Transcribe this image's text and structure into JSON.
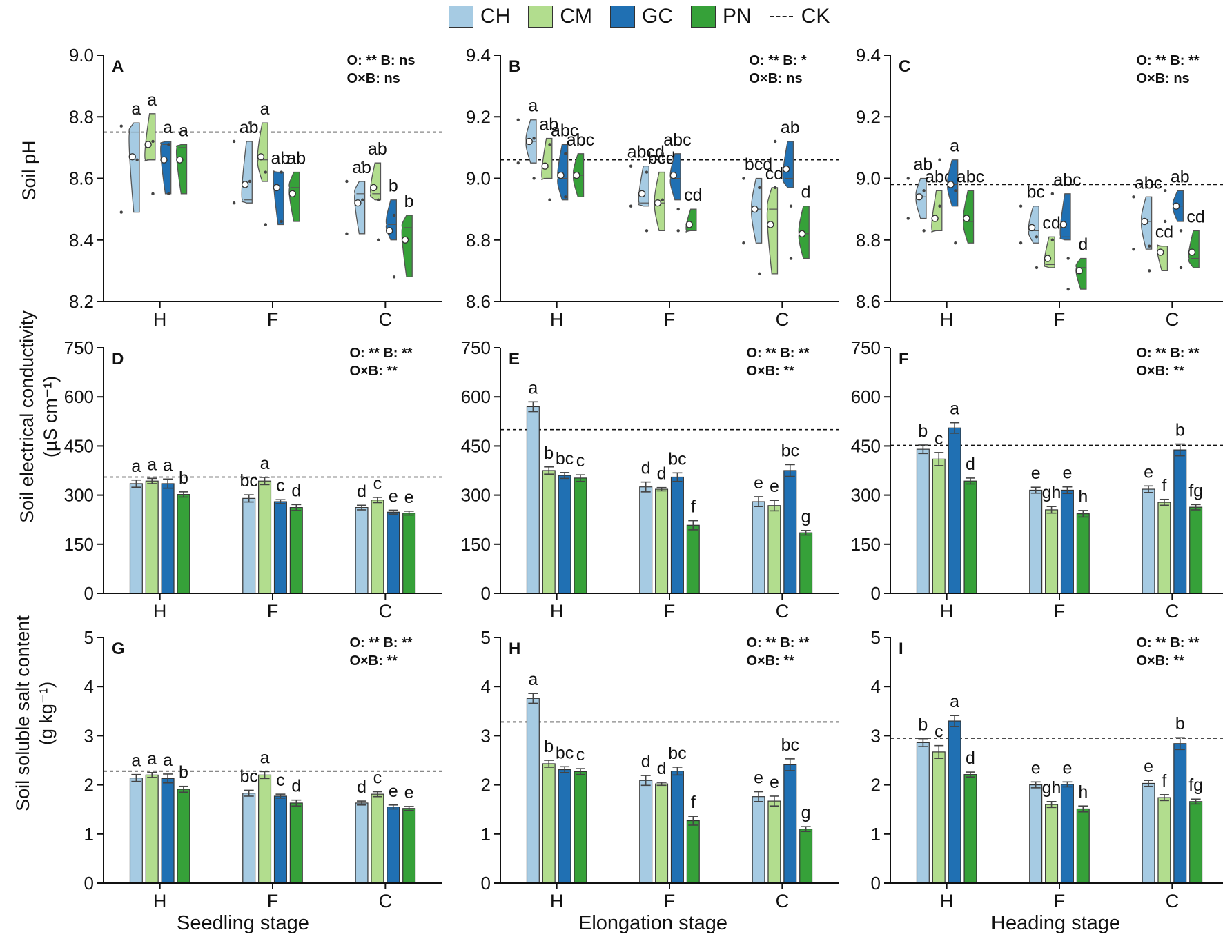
{
  "legend": {
    "items": [
      {
        "name": "CH",
        "color": "#a6cbe3"
      },
      {
        "name": "CM",
        "color": "#b2dd8e"
      },
      {
        "name": "GC",
        "color": "#2070b3"
      },
      {
        "name": "PN",
        "color": "#36a139"
      }
    ],
    "ck_label": "CK"
  },
  "ylabels": {
    "ph": "Soil pH",
    "ec_line1": "Soil electrical conductivity",
    "ec_line2": "(µS cm⁻¹)",
    "salt_line1": "Soil soluble salt content",
    "salt_line2": "(g kg⁻¹)"
  },
  "xlabels": {
    "seedling": "Seedling stage",
    "elongation": "Elongation stage",
    "heading": "Heading stage"
  },
  "chart_data": [
    {
      "id": "A",
      "type": "violin",
      "title": "A",
      "ylim": [
        8.2,
        9.0
      ],
      "yticks": [
        8.2,
        8.4,
        8.6,
        8.8,
        9.0
      ],
      "tick_format": 1,
      "categories": [
        "H",
        "F",
        "C"
      ],
      "ck": 8.75,
      "stats": [
        "O: **  B: ns",
        "O×B: ns"
      ],
      "series": [
        {
          "name": "CH",
          "mean": [
            8.67,
            8.58,
            8.52
          ],
          "q1": [
            8.49,
            8.52,
            8.42
          ],
          "median": [
            8.75,
            8.53,
            8.55
          ],
          "q3": [
            8.77,
            8.72,
            8.59
          ],
          "min": [
            8.49,
            8.52,
            8.42
          ],
          "max": [
            8.78,
            8.72,
            8.59
          ],
          "letters": [
            "a",
            "ab",
            "ab"
          ]
        },
        {
          "name": "CM",
          "mean": [
            8.71,
            8.67,
            8.57
          ],
          "q1": [
            8.66,
            8.59,
            8.53
          ],
          "median": [
            8.66,
            8.66,
            8.55
          ],
          "q3": [
            8.81,
            8.78,
            8.65
          ],
          "min": [
            8.66,
            8.59,
            8.53
          ],
          "max": [
            8.81,
            8.78,
            8.65
          ],
          "letters": [
            "a",
            "a",
            "ab"
          ]
        },
        {
          "name": "GC",
          "mean": [
            8.66,
            8.57,
            8.43
          ],
          "q1": [
            8.55,
            8.45,
            8.4
          ],
          "median": [
            8.71,
            8.62,
            8.45
          ],
          "q3": [
            8.72,
            8.62,
            8.53
          ],
          "min": [
            8.55,
            8.45,
            8.4
          ],
          "max": [
            8.72,
            8.62,
            8.53
          ],
          "letters": [
            "a",
            "ab",
            "b"
          ]
        },
        {
          "name": "PN",
          "mean": [
            8.66,
            8.55,
            8.4
          ],
          "q1": [
            8.55,
            8.46,
            8.28
          ],
          "median": [
            8.7,
            8.57,
            8.44
          ],
          "q3": [
            8.71,
            8.62,
            8.48
          ],
          "min": [
            8.55,
            8.46,
            8.28
          ],
          "max": [
            8.71,
            8.62,
            8.48
          ],
          "letters": [
            "a",
            "ab",
            "b"
          ]
        }
      ]
    },
    {
      "id": "B",
      "type": "violin",
      "title": "B",
      "ylim": [
        8.6,
        9.4
      ],
      "yticks": [
        8.6,
        8.8,
        9.0,
        9.2,
        9.4
      ],
      "tick_format": 1,
      "categories": [
        "H",
        "F",
        "C"
      ],
      "ck": 9.06,
      "stats": [
        "O: **  B: *",
        "O×B: ns"
      ],
      "series": [
        {
          "name": "CH",
          "mean": [
            9.12,
            8.95,
            8.9
          ],
          "q1": [
            9.05,
            8.91,
            8.79
          ],
          "median": [
            9.12,
            8.92,
            8.9
          ],
          "q3": [
            9.19,
            9.04,
            9.0
          ],
          "min": [
            9.05,
            8.91,
            8.79
          ],
          "max": [
            9.19,
            9.04,
            9.0
          ],
          "letters": [
            "a",
            "abcd",
            "bcd"
          ]
        },
        {
          "name": "CM",
          "mean": [
            9.04,
            8.92,
            8.85
          ],
          "q1": [
            9.0,
            8.83,
            8.69
          ],
          "median": [
            9.0,
            8.92,
            8.9
          ],
          "q3": [
            9.13,
            9.02,
            8.97
          ],
          "min": [
            9.0,
            8.83,
            8.69
          ],
          "max": [
            9.13,
            9.02,
            8.97
          ],
          "letters": [
            "ab",
            "bcd",
            "cd"
          ]
        },
        {
          "name": "GC",
          "mean": [
            9.01,
            9.01,
            9.03
          ],
          "q1": [
            8.93,
            8.93,
            8.97
          ],
          "median": [
            9.0,
            9.0,
            9.0
          ],
          "q3": [
            9.11,
            9.08,
            9.12
          ],
          "min": [
            8.93,
            8.93,
            8.97
          ],
          "max": [
            9.11,
            9.08,
            9.12
          ],
          "letters": [
            "abc",
            "abc",
            "ab"
          ]
        },
        {
          "name": "PN",
          "mean": [
            9.01,
            8.85,
            8.82
          ],
          "q1": [
            8.94,
            8.83,
            8.74
          ],
          "median": [
            9.01,
            8.83,
            8.82
          ],
          "q3": [
            9.08,
            8.9,
            8.91
          ],
          "min": [
            8.94,
            8.83,
            8.74
          ],
          "max": [
            9.08,
            8.9,
            8.91
          ],
          "letters": [
            "abc",
            "cd",
            "d"
          ]
        }
      ]
    },
    {
      "id": "C",
      "type": "violin",
      "title": "C",
      "ylim": [
        8.6,
        9.4
      ],
      "yticks": [
        8.6,
        8.8,
        9.0,
        9.2,
        9.4
      ],
      "tick_format": 1,
      "categories": [
        "H",
        "F",
        "C"
      ],
      "ck": 8.98,
      "stats": [
        "O: **  B: **",
        "O×B: ns"
      ],
      "series": [
        {
          "name": "CH",
          "mean": [
            8.94,
            8.84,
            8.86
          ],
          "q1": [
            8.87,
            8.79,
            8.77
          ],
          "median": [
            8.94,
            8.83,
            8.86
          ],
          "q3": [
            9.0,
            8.91,
            8.94
          ],
          "min": [
            8.87,
            8.79,
            8.77
          ],
          "max": [
            9.0,
            8.91,
            8.94
          ],
          "letters": [
            "ab",
            "bc",
            "abc"
          ]
        },
        {
          "name": "CM",
          "mean": [
            8.87,
            8.74,
            8.76
          ],
          "q1": [
            8.83,
            8.71,
            8.7
          ],
          "median": [
            8.83,
            8.72,
            8.78
          ],
          "q3": [
            8.96,
            8.81,
            8.78
          ],
          "min": [
            8.83,
            8.71,
            8.7
          ],
          "max": [
            8.96,
            8.81,
            8.78
          ],
          "letters": [
            "abc",
            "cd",
            "cd"
          ]
        },
        {
          "name": "GC",
          "mean": [
            8.98,
            8.85,
            8.91
          ],
          "q1": [
            8.91,
            8.8,
            8.86
          ],
          "median": [
            8.98,
            8.81,
            8.91
          ],
          "q3": [
            9.06,
            8.95,
            8.96
          ],
          "min": [
            8.91,
            8.8,
            8.86
          ],
          "max": [
            9.06,
            8.95,
            8.96
          ],
          "letters": [
            "a",
            "abc",
            "ab"
          ]
        },
        {
          "name": "PN",
          "mean": [
            8.87,
            8.7,
            8.76
          ],
          "q1": [
            8.79,
            8.64,
            8.71
          ],
          "median": [
            8.86,
            8.71,
            8.74
          ],
          "q3": [
            8.96,
            8.74,
            8.83
          ],
          "min": [
            8.79,
            8.64,
            8.71
          ],
          "max": [
            8.96,
            8.74,
            8.83
          ],
          "letters": [
            "abc",
            "d",
            "cd"
          ]
        }
      ]
    },
    {
      "id": "D",
      "type": "bar",
      "title": "D",
      "ylim": [
        0,
        750
      ],
      "yticks": [
        0,
        150,
        300,
        450,
        600,
        750
      ],
      "tick_format": 0,
      "categories": [
        "H",
        "F",
        "C"
      ],
      "ck": 355,
      "stats": [
        "O: **  B: **",
        "O×B: **"
      ],
      "series": [
        {
          "name": "CH",
          "values": [
            335,
            290,
            262
          ],
          "errors": [
            11,
            11,
            7
          ],
          "letters": [
            "a",
            "bc",
            "d"
          ]
        },
        {
          "name": "CM",
          "values": [
            343,
            343,
            285
          ],
          "errors": [
            8,
            11,
            8
          ],
          "letters": [
            "a",
            "a",
            "c"
          ]
        },
        {
          "name": "GC",
          "values": [
            335,
            280,
            248
          ],
          "errors": [
            14,
            6,
            6
          ],
          "letters": [
            "a",
            "c",
            "e"
          ]
        },
        {
          "name": "PN",
          "values": [
            302,
            262,
            245
          ],
          "errors": [
            8,
            9,
            6
          ],
          "letters": [
            "b",
            "d",
            "e"
          ]
        }
      ]
    },
    {
      "id": "E",
      "type": "bar",
      "title": "E",
      "ylim": [
        0,
        750
      ],
      "yticks": [
        0,
        150,
        300,
        450,
        600,
        750
      ],
      "tick_format": 0,
      "categories": [
        "H",
        "F",
        "C"
      ],
      "ck": 500,
      "stats": [
        "O: **  B: **",
        "O×B: **"
      ],
      "series": [
        {
          "name": "CH",
          "values": [
            570,
            325,
            280
          ],
          "errors": [
            15,
            15,
            15
          ],
          "letters": [
            "a",
            "d",
            "e"
          ]
        },
        {
          "name": "CM",
          "values": [
            375,
            318,
            268
          ],
          "errors": [
            11,
            5,
            16
          ],
          "letters": [
            "b",
            "d",
            "e"
          ]
        },
        {
          "name": "GC",
          "values": [
            360,
            355,
            375
          ],
          "errors": [
            9,
            13,
            18
          ],
          "letters": [
            "bc",
            "bc",
            "bc"
          ]
        },
        {
          "name": "PN",
          "values": [
            352,
            208,
            185
          ],
          "errors": [
            10,
            14,
            7
          ],
          "letters": [
            "c",
            "f",
            "g"
          ]
        }
      ]
    },
    {
      "id": "F",
      "type": "bar",
      "title": "F",
      "ylim": [
        0,
        750
      ],
      "yticks": [
        0,
        150,
        300,
        450,
        600,
        750
      ],
      "tick_format": 0,
      "categories": [
        "H",
        "F",
        "C"
      ],
      "ck": 452,
      "stats": [
        "O: **  B: **",
        "O×B: **"
      ],
      "series": [
        {
          "name": "CH",
          "values": [
            440,
            315,
            318
          ],
          "errors": [
            13,
            9,
            10
          ],
          "letters": [
            "b",
            "e",
            "e"
          ]
        },
        {
          "name": "CM",
          "values": [
            410,
            255,
            278
          ],
          "errors": [
            20,
            10,
            9
          ],
          "letters": [
            "c",
            "gh",
            "f"
          ]
        },
        {
          "name": "GC",
          "values": [
            505,
            315,
            438
          ],
          "errors": [
            16,
            10,
            18
          ],
          "letters": [
            "a",
            "e",
            "b"
          ]
        },
        {
          "name": "PN",
          "values": [
            343,
            243,
            263
          ],
          "errors": [
            9,
            10,
            8
          ],
          "letters": [
            "d",
            "h",
            "fg"
          ]
        }
      ]
    },
    {
      "id": "G",
      "type": "bar",
      "title": "G",
      "ylim": [
        0,
        5
      ],
      "yticks": [
        0,
        1,
        2,
        3,
        4,
        5
      ],
      "tick_format": 0,
      "categories": [
        "H",
        "F",
        "C"
      ],
      "ck": 2.28,
      "stats": [
        "O: **  B: **",
        "O×B: **"
      ],
      "series": [
        {
          "name": "CH",
          "values": [
            2.14,
            1.83,
            1.63
          ],
          "errors": [
            0.07,
            0.06,
            0.04
          ],
          "letters": [
            "a",
            "bc",
            "d"
          ]
        },
        {
          "name": "CM",
          "values": [
            2.2,
            2.2,
            1.81
          ],
          "errors": [
            0.05,
            0.07,
            0.05
          ],
          "letters": [
            "a",
            "a",
            "c"
          ]
        },
        {
          "name": "GC",
          "values": [
            2.13,
            1.77,
            1.55
          ],
          "errors": [
            0.09,
            0.04,
            0.04
          ],
          "letters": [
            "a",
            "c",
            "e"
          ]
        },
        {
          "name": "PN",
          "values": [
            1.91,
            1.63,
            1.52
          ],
          "errors": [
            0.06,
            0.06,
            0.04
          ],
          "letters": [
            "b",
            "d",
            "e"
          ]
        }
      ]
    },
    {
      "id": "H",
      "type": "bar",
      "title": "H",
      "ylim": [
        0,
        5
      ],
      "yticks": [
        0,
        1,
        2,
        3,
        4,
        5
      ],
      "tick_format": 0,
      "categories": [
        "H",
        "F",
        "C"
      ],
      "ck": 3.28,
      "stats": [
        "O: **  B: **",
        "O×B: **"
      ],
      "series": [
        {
          "name": "CH",
          "values": [
            3.76,
            2.09,
            1.76
          ],
          "errors": [
            0.1,
            0.1,
            0.1
          ],
          "letters": [
            "a",
            "d",
            "e"
          ]
        },
        {
          "name": "CM",
          "values": [
            2.43,
            2.02,
            1.67
          ],
          "errors": [
            0.07,
            0.03,
            0.1
          ],
          "letters": [
            "b",
            "d",
            "e"
          ]
        },
        {
          "name": "GC",
          "values": [
            2.31,
            2.28,
            2.41
          ],
          "errors": [
            0.06,
            0.08,
            0.12
          ],
          "letters": [
            "bc",
            "bc",
            "bc"
          ]
        },
        {
          "name": "PN",
          "values": [
            2.27,
            1.27,
            1.1
          ],
          "errors": [
            0.06,
            0.09,
            0.05
          ],
          "letters": [
            "c",
            "f",
            "g"
          ]
        }
      ]
    },
    {
      "id": "I",
      "type": "bar",
      "title": "I",
      "ylim": [
        0,
        5
      ],
      "yticks": [
        0,
        1,
        2,
        3,
        4,
        5
      ],
      "tick_format": 0,
      "categories": [
        "H",
        "F",
        "C"
      ],
      "ck": 2.95,
      "stats": [
        "O: **  B: **",
        "O×B: **"
      ],
      "series": [
        {
          "name": "CH",
          "values": [
            2.86,
            2.0,
            2.03
          ],
          "errors": [
            0.08,
            0.06,
            0.06
          ],
          "letters": [
            "b",
            "e",
            "e"
          ]
        },
        {
          "name": "CM",
          "values": [
            2.67,
            1.6,
            1.74
          ],
          "errors": [
            0.13,
            0.06,
            0.06
          ],
          "letters": [
            "c",
            "gh",
            "f"
          ]
        },
        {
          "name": "GC",
          "values": [
            3.3,
            2.01,
            2.84
          ],
          "errors": [
            0.11,
            0.05,
            0.12
          ],
          "letters": [
            "a",
            "e",
            "b"
          ]
        },
        {
          "name": "PN",
          "values": [
            2.21,
            1.51,
            1.66
          ],
          "errors": [
            0.05,
            0.06,
            0.05
          ],
          "letters": [
            "d",
            "h",
            "fg"
          ]
        }
      ]
    }
  ]
}
